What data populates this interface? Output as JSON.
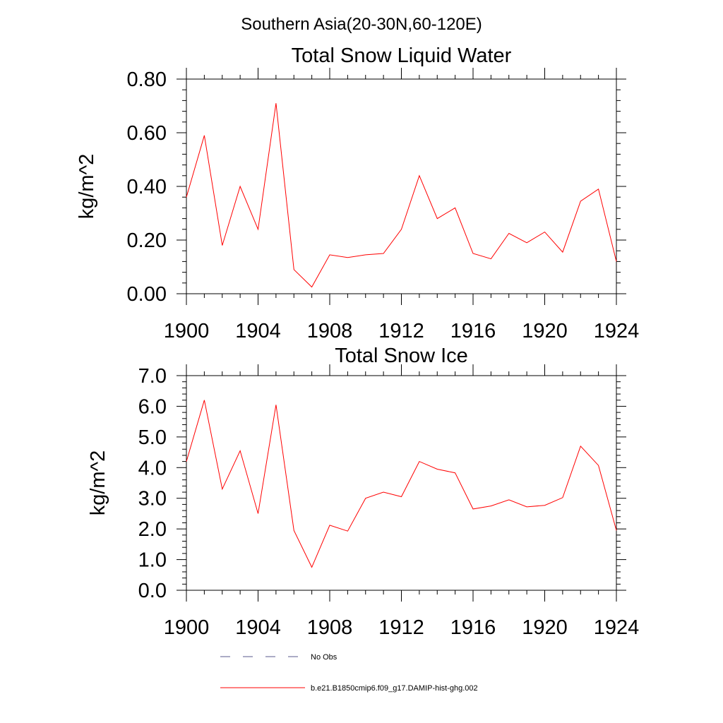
{
  "figure": {
    "suptitle": "Southern Asia(20-30N,60-120E)"
  },
  "legend": {
    "entries": [
      {
        "label": "No Obs",
        "style": "dashed",
        "color": "#5a5a8c"
      },
      {
        "label": "b.e21.B1850cmip6.f09_g17.DAMIP-hist-ghg.002",
        "style": "solid",
        "color": "#ff0000"
      }
    ]
  },
  "chart_data": [
    {
      "type": "line",
      "title": "Total Snow Liquid Water",
      "xlabel": "",
      "ylabel": "kg/m^2",
      "xlim": [
        1900,
        1924
      ],
      "ylim": [
        0,
        0.8
      ],
      "x_ticks": [
        1900,
        1904,
        1908,
        1912,
        1916,
        1920,
        1924
      ],
      "x_tick_labels": [
        "1900",
        "1904",
        "1908",
        "1912",
        "1916",
        "1920",
        "1924"
      ],
      "y_ticks": [
        0,
        0.2,
        0.4,
        0.6,
        0.8
      ],
      "y_tick_labels": [
        "0.00",
        "0.20",
        "0.40",
        "0.60",
        "0.80"
      ],
      "grid": false,
      "series": [
        {
          "name": "b.e21.B1850cmip6.f09_g17.DAMIP-hist-ghg.002",
          "color": "#ff0000",
          "x": [
            1900,
            1901,
            1902,
            1903,
            1904,
            1905,
            1906,
            1907,
            1908,
            1909,
            1910,
            1911,
            1912,
            1913,
            1914,
            1915,
            1916,
            1917,
            1918,
            1919,
            1920,
            1921,
            1922,
            1923,
            1924
          ],
          "values": [
            0.36,
            0.59,
            0.18,
            0.4,
            0.24,
            0.71,
            0.09,
            0.025,
            0.145,
            0.135,
            0.145,
            0.15,
            0.24,
            0.44,
            0.28,
            0.32,
            0.15,
            0.13,
            0.225,
            0.19,
            0.23,
            0.155,
            0.345,
            0.39,
            0.12
          ]
        }
      ]
    },
    {
      "type": "line",
      "title": "Total Snow Ice",
      "xlabel": "",
      "ylabel": "kg/m^2",
      "xlim": [
        1900,
        1924
      ],
      "ylim": [
        0,
        7
      ],
      "x_ticks": [
        1900,
        1904,
        1908,
        1912,
        1916,
        1920,
        1924
      ],
      "x_tick_labels": [
        "1900",
        "1904",
        "1908",
        "1912",
        "1916",
        "1920",
        "1924"
      ],
      "y_ticks": [
        0,
        1,
        2,
        3,
        4,
        5,
        6,
        7
      ],
      "y_tick_labels": [
        "0.0",
        "1.0",
        "2.0",
        "3.0",
        "4.0",
        "5.0",
        "6.0",
        "7.0"
      ],
      "grid": false,
      "series": [
        {
          "name": "b.e21.B1850cmip6.f09_g17.DAMIP-hist-ghg.002",
          "color": "#ff0000",
          "x": [
            1900,
            1901,
            1902,
            1903,
            1904,
            1905,
            1906,
            1907,
            1908,
            1909,
            1910,
            1911,
            1912,
            1913,
            1914,
            1915,
            1916,
            1917,
            1918,
            1919,
            1920,
            1921,
            1922,
            1923,
            1924
          ],
          "values": [
            4.2,
            6.2,
            3.3,
            4.55,
            2.5,
            6.05,
            1.95,
            0.75,
            2.12,
            1.93,
            3.0,
            3.2,
            3.05,
            4.2,
            3.95,
            3.83,
            2.65,
            2.75,
            2.95,
            2.72,
            2.77,
            3.02,
            4.7,
            4.07,
            1.95
          ]
        }
      ]
    }
  ]
}
